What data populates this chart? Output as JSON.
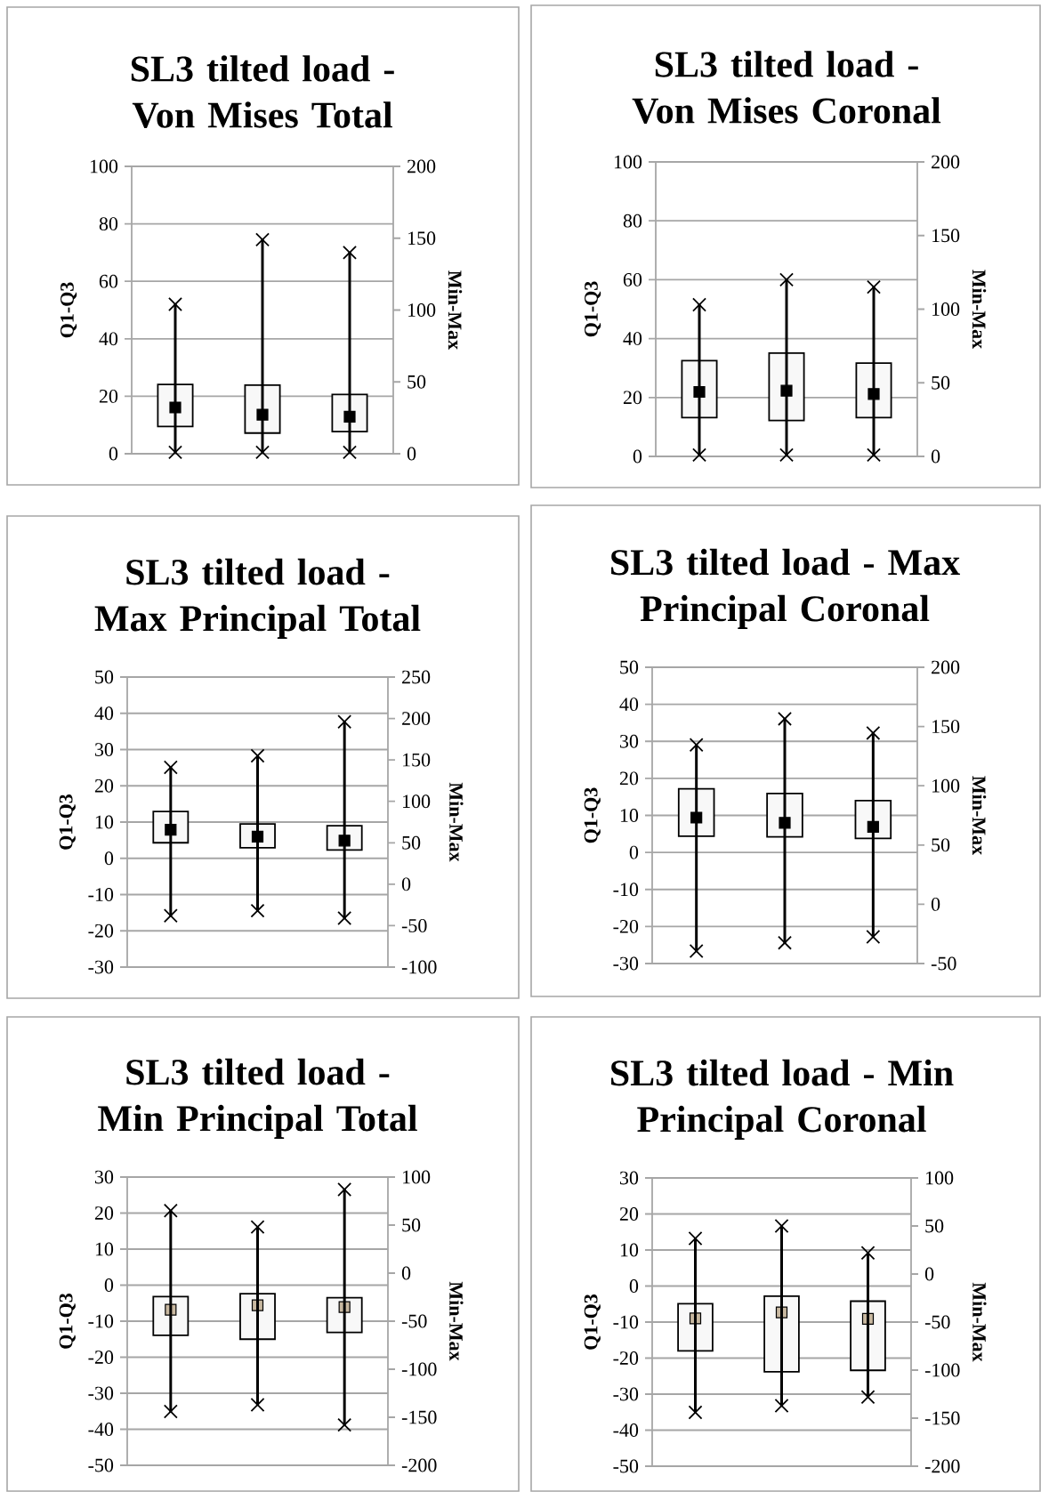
{
  "chart_data": [
    {
      "type": "bar",
      "title": "SL3 tilted load - Von Mises Total",
      "ylabel": "Q1-Q3",
      "y2label": "Min-Max",
      "categories": [
        null,
        null,
        null
      ],
      "ylim": [
        0,
        100
      ],
      "yticks": [
        0,
        20,
        40,
        60,
        80,
        100
      ],
      "y2lim": [
        0,
        200
      ],
      "y2ticks": [
        0,
        50,
        100,
        150,
        200
      ],
      "grid": "y",
      "series": [
        {
          "color": "#f8f8f8",
          "base": [
            9.5,
            7.2,
            7.7
          ],
          "values": [
            14.6,
            16.7,
            12.9
          ]
        },
        {
          "type": "scatter",
          "marker": "square",
          "color": "#000000",
          "values": [
            16.1,
            13.6,
            12.9
          ]
        },
        {
          "type": "bar",
          "axis": "y2",
          "color": "#000000",
          "base": [
            1,
            1,
            1
          ],
          "values": [
            103,
            148,
            139
          ]
        },
        {
          "type": "scatter",
          "axis": "y2",
          "marker": "cross",
          "color": "#000000",
          "values": [
            104,
            149,
            140
          ]
        },
        {
          "type": "scatter",
          "axis": "y2",
          "marker": "cross",
          "color": "#000000",
          "values": [
            1,
            1,
            1
          ]
        }
      ]
    },
    {
      "type": "bar",
      "title": "SL3 tilted load - Von Mises Coronal",
      "ylabel": "Q1-Q3",
      "y2label": "Min-Max",
      "categories": [
        null,
        null,
        null
      ],
      "ylim": [
        0,
        100
      ],
      "yticks": [
        0,
        20,
        40,
        60,
        80,
        100
      ],
      "y2lim": [
        0,
        200
      ],
      "y2ticks": [
        0,
        50,
        100,
        150,
        200
      ],
      "grid": "y",
      "series": [
        {
          "color": "#f8f8f8",
          "base": [
            13.2,
            12.2,
            13.2
          ],
          "values": [
            19.3,
            22.9,
            18.5
          ]
        },
        {
          "type": "scatter",
          "marker": "square",
          "color": "#000000",
          "values": [
            21.9,
            22.3,
            21.2
          ]
        },
        {
          "type": "bar",
          "axis": "y2",
          "color": "#000000",
          "base": [
            1,
            1,
            1
          ],
          "values": [
            102,
            119,
            114
          ]
        },
        {
          "type": "scatter",
          "axis": "y2",
          "marker": "cross",
          "color": "#000000",
          "values": [
            103,
            120,
            115
          ]
        },
        {
          "type": "scatter",
          "axis": "y2",
          "marker": "cross",
          "color": "#000000",
          "values": [
            1,
            1,
            1
          ]
        }
      ]
    },
    {
      "type": "bar",
      "title": "SL3 tilted load - Max Principal Total",
      "ylabel": "Q1-Q3",
      "y2label": "Min-Max",
      "categories": [
        null,
        null,
        null
      ],
      "ylim": [
        -30,
        50
      ],
      "yticks": [
        -30,
        -20,
        -10,
        0,
        10,
        20,
        30,
        40,
        50
      ],
      "y2lim": [
        -100,
        250
      ],
      "y2ticks": [
        -100,
        -50,
        0,
        50,
        100,
        150,
        200,
        250
      ],
      "grid": "y",
      "series": [
        {
          "color": "#f8f8f8",
          "base": [
            4.3,
            2.9,
            2.3
          ],
          "values": [
            8.6,
            6.6,
            6.7
          ]
        },
        {
          "type": "scatter",
          "marker": "square",
          "color": "#000000",
          "values": [
            7.9,
            6.0,
            4.9
          ]
        },
        {
          "type": "bar",
          "axis": "y2",
          "color": "#000000",
          "base": [
            -38,
            -32,
            -41
          ],
          "values": [
            179,
            187,
            237
          ]
        },
        {
          "type": "scatter",
          "axis": "y2",
          "marker": "cross",
          "color": "#000000",
          "values": [
            141,
            155,
            196
          ]
        },
        {
          "type": "scatter",
          "axis": "y2",
          "marker": "cross",
          "color": "#000000",
          "values": [
            -38,
            -32,
            -41
          ]
        }
      ]
    },
    {
      "type": "bar",
      "title": "SL3 tilted load - Max Principal Coronal",
      "ylabel": "Q1-Q3",
      "y2label": "Min-Max",
      "categories": [
        null,
        null,
        null
      ],
      "ylim": [
        -30,
        50
      ],
      "yticks": [
        -30,
        -20,
        -10,
        0,
        10,
        20,
        30,
        40,
        50
      ],
      "y2lim": [
        -50,
        200
      ],
      "y2ticks": [
        -50,
        0,
        50,
        100,
        150,
        200
      ],
      "grid": "y",
      "series": [
        {
          "color": "#f8f8f8",
          "base": [
            4.4,
            4.2,
            3.8
          ],
          "values": [
            12.8,
            11.7,
            10.2
          ]
        },
        {
          "type": "scatter",
          "marker": "square",
          "color": "#000000",
          "values": [
            9.4,
            8.0,
            6.9
          ]
        },
        {
          "type": "bar",
          "axis": "y2",
          "color": "#000000",
          "base": [
            -39.5,
            -32.5,
            -27.5
          ],
          "values": [
            174,
            189,
            172
          ]
        },
        {
          "type": "scatter",
          "axis": "y2",
          "marker": "cross",
          "color": "#000000",
          "values": [
            134.5,
            156.5,
            144.5
          ]
        },
        {
          "type": "scatter",
          "axis": "y2",
          "marker": "cross",
          "color": "#000000",
          "values": [
            -39.5,
            -32.5,
            -27.5
          ]
        }
      ]
    },
    {
      "type": "bar",
      "title": "SL3 tilted load - Min Principal Total",
      "ylabel": "Q1-Q3",
      "y2label": "Min-Max",
      "categories": [
        null,
        null,
        null
      ],
      "ylim": [
        -50,
        30
      ],
      "yticks": [
        -50,
        -40,
        -30,
        -20,
        -10,
        0,
        10,
        20,
        30
      ],
      "y2lim": [
        -200,
        100
      ],
      "y2ticks": [
        -200,
        -150,
        -100,
        -50,
        0,
        50,
        100
      ],
      "grid": "y",
      "series": [
        {
          "color": "#f8f8f8",
          "base": [
            -13.9,
            -15.0,
            -13.1
          ],
          "values": [
            10.7,
            12.6,
            9.6
          ]
        },
        {
          "type": "scatter",
          "marker": "square",
          "color": "#c8b8a0",
          "values": [
            -6.8,
            -5.6,
            -6.1
          ]
        },
        {
          "type": "bar",
          "axis": "y2",
          "color": "#000000",
          "base": [
            -144,
            -137,
            -158
          ],
          "values": [
            209,
            185,
            245
          ]
        },
        {
          "type": "scatter",
          "axis": "y2",
          "marker": "cross",
          "color": "#000000",
          "values": [
            65,
            48,
            87
          ]
        },
        {
          "type": "scatter",
          "axis": "y2",
          "marker": "cross",
          "color": "#000000",
          "values": [
            -144,
            -137,
            -158
          ]
        }
      ]
    },
    {
      "type": "bar",
      "title": "SL3 tilted load - Min Principal Coronal",
      "ylabel": "Q1-Q3",
      "y2label": "Min-Max",
      "categories": [
        null,
        null,
        null
      ],
      "ylim": [
        -50,
        30
      ],
      "yticks": [
        -50,
        -40,
        -30,
        -20,
        -10,
        0,
        10,
        20,
        30
      ],
      "y2lim": [
        -200,
        100
      ],
      "y2ticks": [
        -200,
        -150,
        -100,
        -50,
        0,
        50,
        100
      ],
      "grid": "y",
      "series": [
        {
          "color": "#f8f8f8",
          "base": [
            -18.0,
            -23.8,
            -23.4
          ],
          "values": [
            13.1,
            21.0,
            19.2
          ]
        },
        {
          "type": "scatter",
          "marker": "square",
          "color": "#c8b8a0",
          "values": [
            -9.0,
            -7.3,
            -9.1
          ]
        },
        {
          "type": "bar",
          "axis": "y2",
          "color": "#000000",
          "base": [
            -144,
            -137,
            -128
          ],
          "values": [
            181,
            187,
            150
          ]
        },
        {
          "type": "scatter",
          "axis": "y2",
          "marker": "cross",
          "color": "#000000",
          "values": [
            37,
            50,
            22
          ]
        },
        {
          "type": "scatter",
          "axis": "y2",
          "marker": "cross",
          "color": "#000000",
          "values": [
            -144,
            -137,
            -128
          ]
        }
      ]
    }
  ]
}
